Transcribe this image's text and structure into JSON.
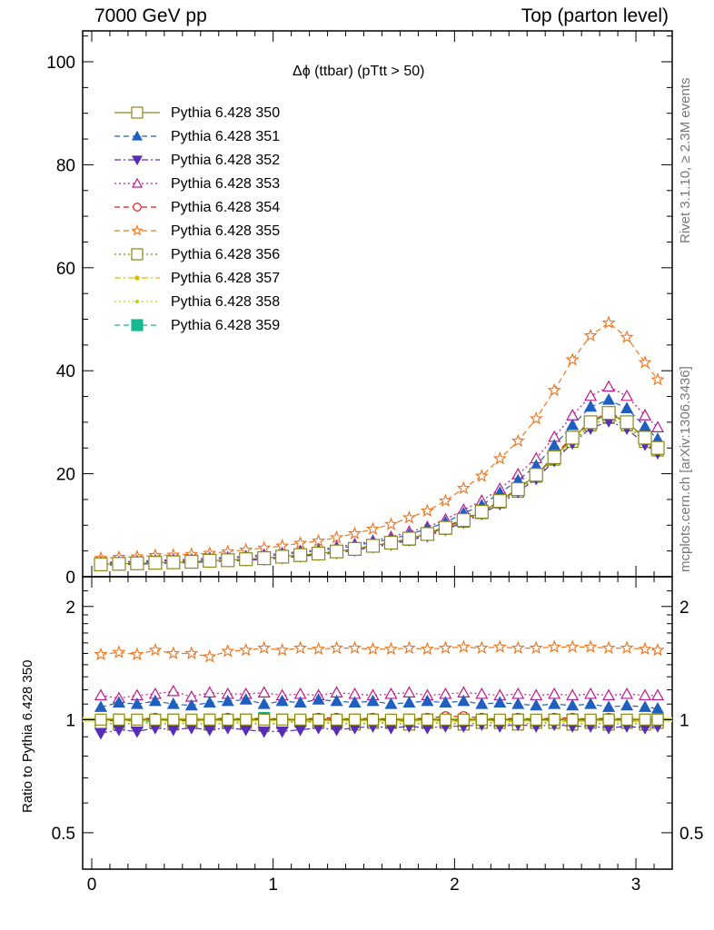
{
  "header": {
    "left": "7000 GeV pp",
    "right": "Top (parton level)"
  },
  "side_labels": {
    "rivet": "Rivet 3.1.10, ≥ 2.3M events",
    "mcplots": "mcplots.cern.ch [arXiv:1306.3436]"
  },
  "chart_data": [
    {
      "type": "line",
      "title": "Δϕ (ttbar) (pTtt > 50)",
      "xlabel": "",
      "ylabel": "",
      "xlim": [
        -0.05,
        3.2
      ],
      "ylim": [
        0,
        106
      ],
      "x_ticks": [
        0,
        1,
        2,
        3
      ],
      "y_ticks": [
        0,
        20,
        40,
        60,
        80,
        100
      ],
      "grid": false,
      "legend_position": "top-left",
      "x": [
        0.05,
        0.15,
        0.25,
        0.35,
        0.45,
        0.55,
        0.65,
        0.75,
        0.85,
        0.95,
        1.05,
        1.15,
        1.25,
        1.35,
        1.45,
        1.55,
        1.65,
        1.75,
        1.85,
        1.95,
        2.05,
        2.15,
        2.25,
        2.35,
        2.45,
        2.55,
        2.65,
        2.75,
        2.85,
        2.95,
        3.05,
        3.12
      ],
      "reference_values": [
        2.4,
        2.5,
        2.6,
        2.7,
        2.8,
        2.9,
        3.1,
        3.2,
        3.4,
        3.6,
        3.9,
        4.2,
        4.5,
        4.9,
        5.4,
        6.0,
        6.6,
        7.4,
        8.3,
        9.5,
        11.0,
        12.6,
        14.7,
        17.0,
        19.8,
        23.2,
        27.0,
        30.0,
        31.8,
        30.0,
        27.0,
        25.0
      ],
      "series": [
        {
          "name": "Pythia 6.428 350",
          "color": "#8a8a1a",
          "marker": "square-open",
          "dash": "solid",
          "ratio": [
            1.0,
            1.0,
            1.0,
            1.0,
            1.0,
            1.0,
            1.0,
            1.0,
            1.0,
            1.0,
            1.0,
            1.0,
            1.0,
            1.0,
            1.0,
            1.0,
            1.0,
            1.0,
            1.0,
            1.0,
            1.0,
            1.0,
            1.0,
            1.0,
            1.0,
            1.0,
            1.0,
            1.0,
            1.0,
            1.0,
            1.0,
            1.0
          ]
        },
        {
          "name": "Pythia 6.428 351",
          "color": "#1f5fbf",
          "marker": "triangle-up",
          "dash": "dash",
          "ratio": [
            1.08,
            1.11,
            1.1,
            1.12,
            1.1,
            1.09,
            1.11,
            1.12,
            1.13,
            1.1,
            1.12,
            1.11,
            1.13,
            1.12,
            1.11,
            1.12,
            1.1,
            1.11,
            1.12,
            1.11,
            1.12,
            1.1,
            1.11,
            1.1,
            1.09,
            1.1,
            1.09,
            1.1,
            1.08,
            1.09,
            1.08,
            1.07
          ]
        },
        {
          "name": "Pythia 6.428 352",
          "color": "#5a2db8",
          "marker": "triangle-down",
          "dash": "dashdot",
          "ratio": [
            0.92,
            0.94,
            0.93,
            0.95,
            0.94,
            0.95,
            0.94,
            0.95,
            0.94,
            0.93,
            0.93,
            0.94,
            0.95,
            0.94,
            0.95,
            0.96,
            0.95,
            0.96,
            0.95,
            0.96,
            0.96,
            0.97,
            0.96,
            0.97,
            0.96,
            0.97,
            0.96,
            0.96,
            0.95,
            0.96,
            0.95,
            0.96
          ]
        },
        {
          "name": "Pythia 6.428 353",
          "color": "#c0188a",
          "marker": "triangle-up-open",
          "dash": "dot",
          "ratio": [
            1.16,
            1.14,
            1.16,
            1.17,
            1.19,
            1.15,
            1.18,
            1.17,
            1.17,
            1.18,
            1.16,
            1.17,
            1.16,
            1.18,
            1.17,
            1.16,
            1.17,
            1.18,
            1.16,
            1.17,
            1.18,
            1.17,
            1.16,
            1.17,
            1.16,
            1.17,
            1.16,
            1.17,
            1.16,
            1.17,
            1.16,
            1.16
          ]
        },
        {
          "name": "Pythia 6.428 354",
          "color": "#e01818",
          "marker": "circle-open",
          "dash": "dash",
          "ratio": [
            1.0,
            0.99,
            1.0,
            1.01,
            0.99,
            1.0,
            1.0,
            1.01,
            1.0,
            1.01,
            1.0,
            1.0,
            1.01,
            1.01,
            1.0,
            1.01,
            1.0,
            1.0,
            1.01,
            1.02,
            1.02,
            1.01,
            1.0,
            1.01,
            1.0,
            1.01,
            1.01,
            1.0,
            1.01,
            1.0,
            1.0,
            1.0
          ]
        },
        {
          "name": "Pythia 6.428 355",
          "color": "#f07820",
          "marker": "star-open",
          "dash": "dash",
          "ratio": [
            1.49,
            1.51,
            1.49,
            1.53,
            1.5,
            1.5,
            1.47,
            1.52,
            1.53,
            1.55,
            1.53,
            1.55,
            1.54,
            1.55,
            1.55,
            1.54,
            1.54,
            1.55,
            1.54,
            1.55,
            1.56,
            1.55,
            1.56,
            1.55,
            1.55,
            1.56,
            1.56,
            1.56,
            1.55,
            1.55,
            1.54,
            1.53
          ]
        },
        {
          "name": "Pythia 6.428 356",
          "color": "#7a8a10",
          "marker": "square-open",
          "dash": "dot",
          "ratio": [
            0.98,
            0.97,
            0.98,
            0.98,
            0.97,
            0.98,
            0.97,
            0.98,
            0.98,
            0.97,
            0.98,
            0.99,
            0.98,
            0.98,
            0.97,
            0.98,
            0.98,
            0.97,
            0.98,
            0.98,
            0.97,
            0.98,
            0.98,
            0.97,
            0.98,
            0.98,
            0.97,
            0.98,
            0.97,
            0.98,
            0.97,
            0.98
          ]
        },
        {
          "name": "Pythia 6.428 357",
          "color": "#d8c000",
          "marker": "dot",
          "dash": "dashdot",
          "ratio": [
            0.99,
            1.0,
            0.99,
            1.0,
            0.99,
            0.99,
            1.0,
            0.99,
            1.0,
            0.99,
            1.0,
            0.99,
            0.99,
            1.0,
            0.99,
            1.0,
            0.99,
            0.99,
            1.0,
            0.99,
            0.99,
            1.0,
            0.99,
            0.99,
            1.0,
            0.99,
            0.99,
            0.99,
            1.0,
            0.99,
            0.99,
            0.99
          ]
        },
        {
          "name": "Pythia 6.428 358",
          "color": "#b8d818",
          "marker": "dot-small",
          "dash": "dot",
          "ratio": [
            1.0,
            0.99,
            1.0,
            1.0,
            0.99,
            1.0,
            1.0,
            0.99,
            1.0,
            0.99,
            1.0,
            1.0,
            0.99,
            1.0,
            1.0,
            0.99,
            1.0,
            1.0,
            0.99,
            1.0,
            1.0,
            0.99,
            1.0,
            1.0,
            0.99,
            1.0,
            1.0,
            0.99,
            1.0,
            1.0,
            0.99,
            1.0
          ]
        },
        {
          "name": "Pythia 6.428 359",
          "color": "#18b890",
          "marker": "square",
          "dash": "dash",
          "ratio": [
            0.99,
            1.0,
            0.99,
            0.99,
            1.0,
            0.99,
            1.0,
            0.99,
            1.0,
            1.01,
            1.0,
            0.99,
            1.0,
            0.99,
            1.0,
            1.0,
            0.99,
            1.0,
            1.0,
            0.99,
            1.0,
            1.0,
            0.99,
            1.0,
            0.99,
            1.0,
            1.0,
            0.99,
            1.0,
            0.99,
            1.0,
            0.99
          ]
        }
      ]
    },
    {
      "type": "line",
      "title": "",
      "xlabel": "",
      "ylabel": "Ratio to Pythia 6.428 350",
      "xlim": [
        -0.05,
        3.2
      ],
      "ylim": [
        0.4,
        2.4
      ],
      "y_scale": "log",
      "x_ticks": [
        0,
        1,
        2,
        3
      ],
      "y_ticks": [
        0.5,
        1,
        2
      ],
      "reference_line": 1,
      "grid": false
    }
  ]
}
